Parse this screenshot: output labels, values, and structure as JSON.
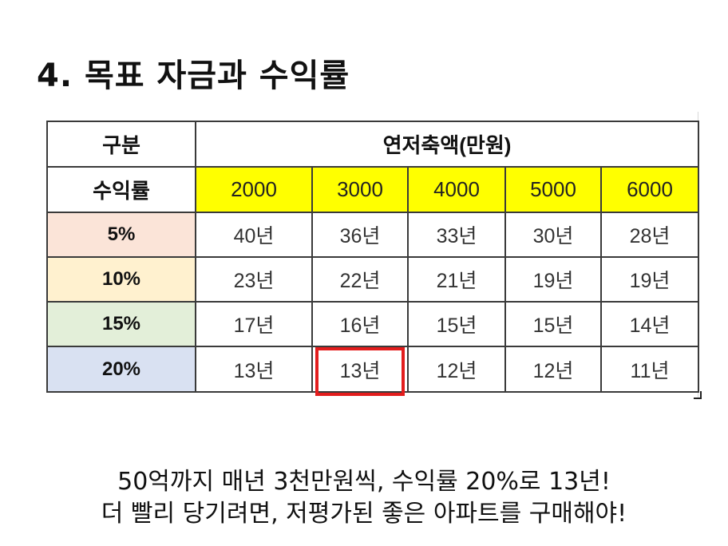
{
  "title": "4. 목표 자금과 수익률",
  "table": {
    "header_left_top": "구분",
    "header_group": "연저축액(만원)",
    "header_left_sub": "수익률",
    "columns": [
      "2000",
      "3000",
      "4000",
      "5000",
      "6000"
    ],
    "rows": [
      {
        "rate": "5%",
        "rate_color": "#fbe4d8",
        "values": [
          "40년",
          "36년",
          "33년",
          "30년",
          "28년"
        ]
      },
      {
        "rate": "10%",
        "rate_color": "#fff1cf",
        "values": [
          "23년",
          "22년",
          "21년",
          "19년",
          "19년"
        ]
      },
      {
        "rate": "15%",
        "rate_color": "#e3efd9",
        "values": [
          "17년",
          "16년",
          "15년",
          "15년",
          "14년"
        ]
      },
      {
        "rate": "20%",
        "rate_color": "#d9e1f2",
        "values": [
          "13년",
          "13년",
          "12년",
          "12년",
          "11년"
        ]
      }
    ],
    "highlight": {
      "row": 3,
      "col": 1,
      "color": "#e31d1d"
    }
  },
  "caption": {
    "line1": "50억까지 매년 3천만원씩, 수익률 20%로 13년!",
    "line2": "더 빨리 당기려면, 저평가된 좋은 아파트를 구매해야!"
  }
}
